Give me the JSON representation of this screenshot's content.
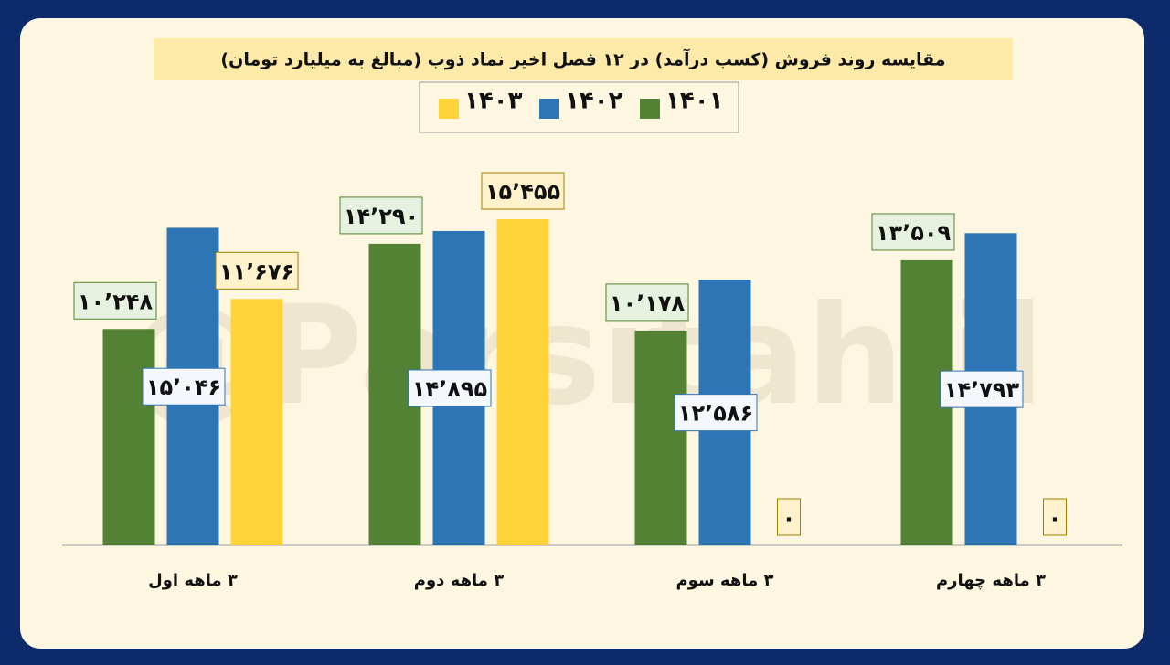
{
  "chart_data": {
    "type": "bar",
    "title": "مقایسه روند فروش (کسب درآمد) در ۱۲ فصل اخیر نماد ذوب (مبالغ به میلیارد تومان)",
    "watermark": "@Parsitahlil",
    "categories": [
      "۳ ماهه اول",
      "۳ ماهه دوم",
      "۳ ماهه سوم",
      "۳ ماهه چهارم"
    ],
    "series": [
      {
        "name": "۱۴۰۱",
        "color": "#548235",
        "values": [
          10248,
          14290,
          10178,
          13509
        ],
        "value_labels": [
          "۱۰٬۲۴۸",
          "۱۴٬۲۹۰",
          "۱۰٬۱۷۸",
          "۱۳٬۵۰۹"
        ]
      },
      {
        "name": "۱۴۰۲",
        "color": "#2e75b6",
        "values": [
          15046,
          14895,
          12586,
          14793
        ],
        "value_labels": [
          "۱۵٬۰۴۶",
          "۱۴٬۸۹۵",
          "۱۲٬۵۸۶",
          "۱۴٬۷۹۳"
        ]
      },
      {
        "name": "۱۴۰۳",
        "color": "#ffd43b",
        "values": [
          11676,
          15455,
          0,
          0
        ],
        "value_labels": [
          "۱۱٬۶۷۶",
          "۱۵٬۴۵۵",
          "۰",
          "۰"
        ]
      }
    ]
  }
}
